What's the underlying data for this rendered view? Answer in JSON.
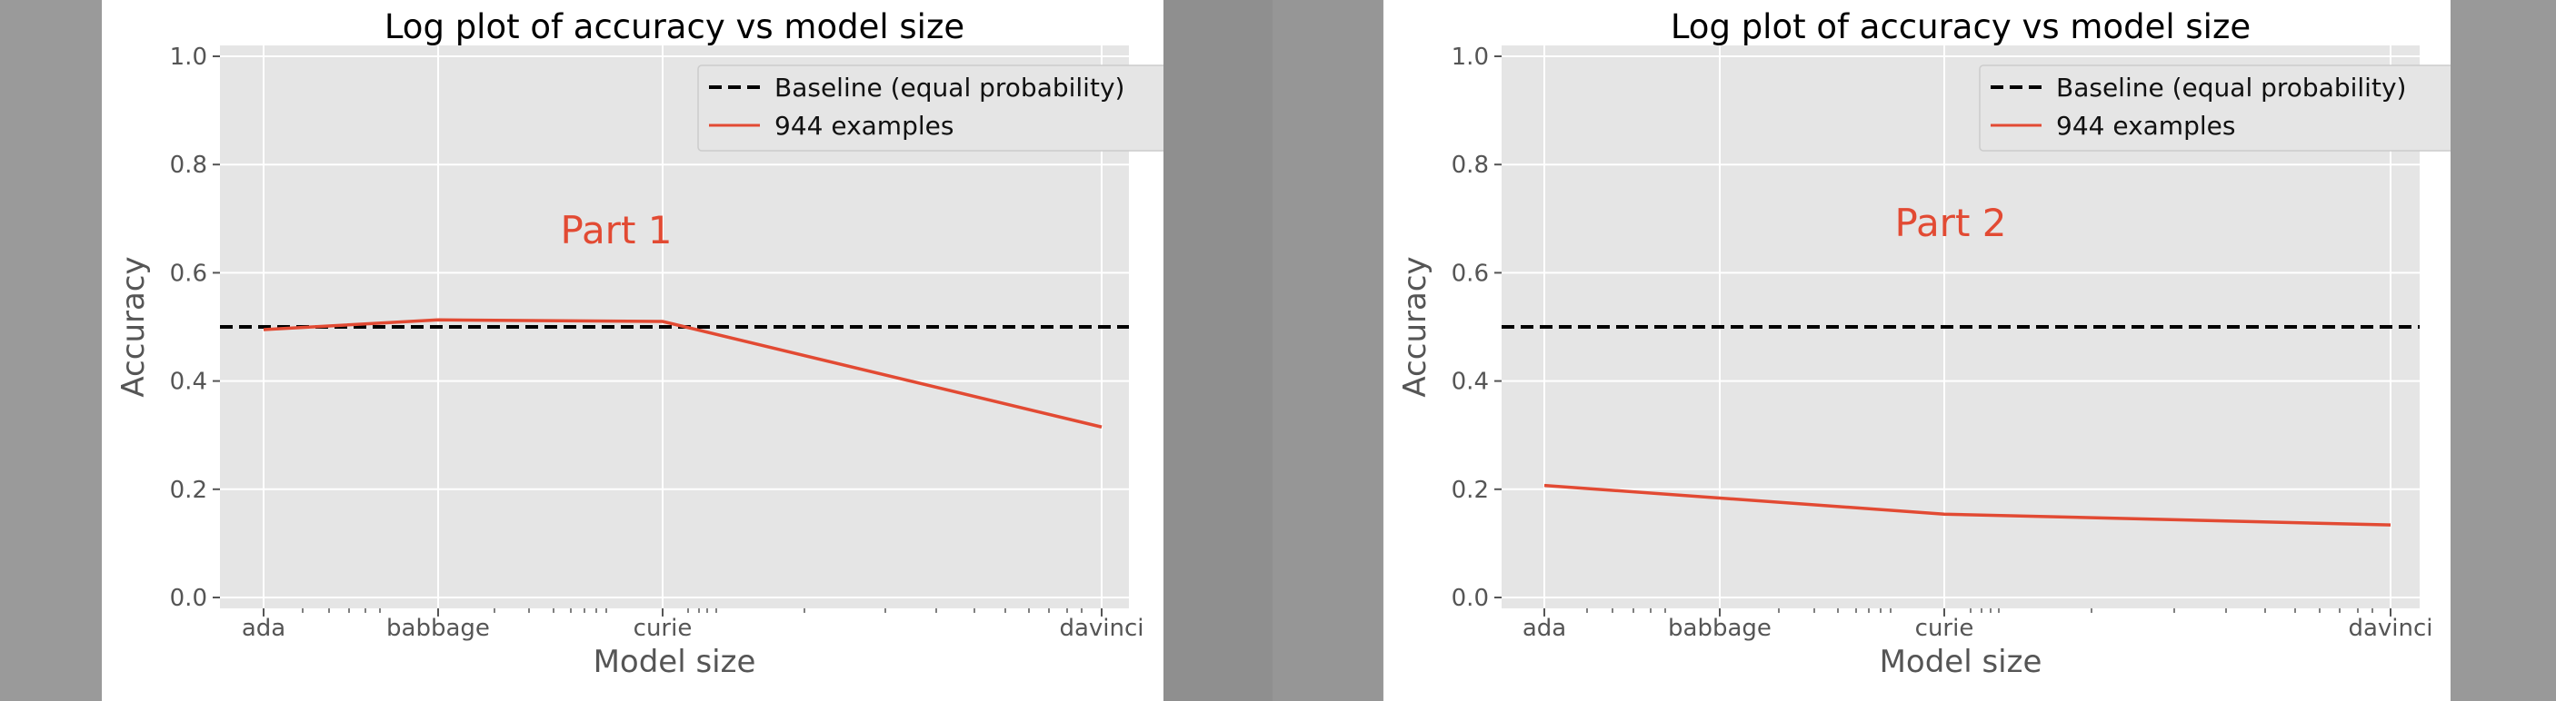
{
  "chart_data": [
    {
      "type": "line",
      "title": "Log plot of accuracy vs model size",
      "xlabel": "Model size",
      "ylabel": "Accuracy",
      "xscale": "log",
      "categories": [
        "ada",
        "babbage",
        "curie",
        "davinci"
      ],
      "ylim": [
        0,
        1
      ],
      "yticks": [
        "0.0",
        "0.2",
        "0.4",
        "0.6",
        "0.8",
        "1.0"
      ],
      "grid": true,
      "legend_position": "upper right",
      "annotation": "Part 1",
      "series": [
        {
          "name": "Baseline (equal probability)",
          "values": [
            0.5,
            0.5,
            0.5,
            0.5
          ],
          "color": "#000000",
          "style": "dashed"
        },
        {
          "name": "944 examples",
          "values": [
            0.495,
            0.513,
            0.51,
            0.315
          ],
          "color": "#E24A33",
          "style": "solid"
        }
      ]
    },
    {
      "type": "line",
      "title": "Log plot of accuracy vs model size",
      "xlabel": "Model size",
      "ylabel": "Accuracy",
      "xscale": "log",
      "categories": [
        "ada",
        "babbage",
        "curie",
        "davinci"
      ],
      "ylim": [
        0,
        1
      ],
      "yticks": [
        "0.0",
        "0.2",
        "0.4",
        "0.6",
        "0.8",
        "1.0"
      ],
      "grid": true,
      "legend_position": "upper right",
      "annotation": "Part 2",
      "series": [
        {
          "name": "Baseline (equal probability)",
          "values": [
            0.5,
            0.5,
            0.5,
            0.5
          ],
          "color": "#000000",
          "style": "dashed"
        },
        {
          "name": "944 examples",
          "values": [
            0.207,
            null,
            0.154,
            0.134
          ],
          "color": "#E24A33",
          "style": "solid"
        }
      ]
    }
  ],
  "theme": {
    "plot_bg": "#E5E5E5",
    "grid": "#FFFFFF",
    "annotation_color": "#E24A33"
  }
}
